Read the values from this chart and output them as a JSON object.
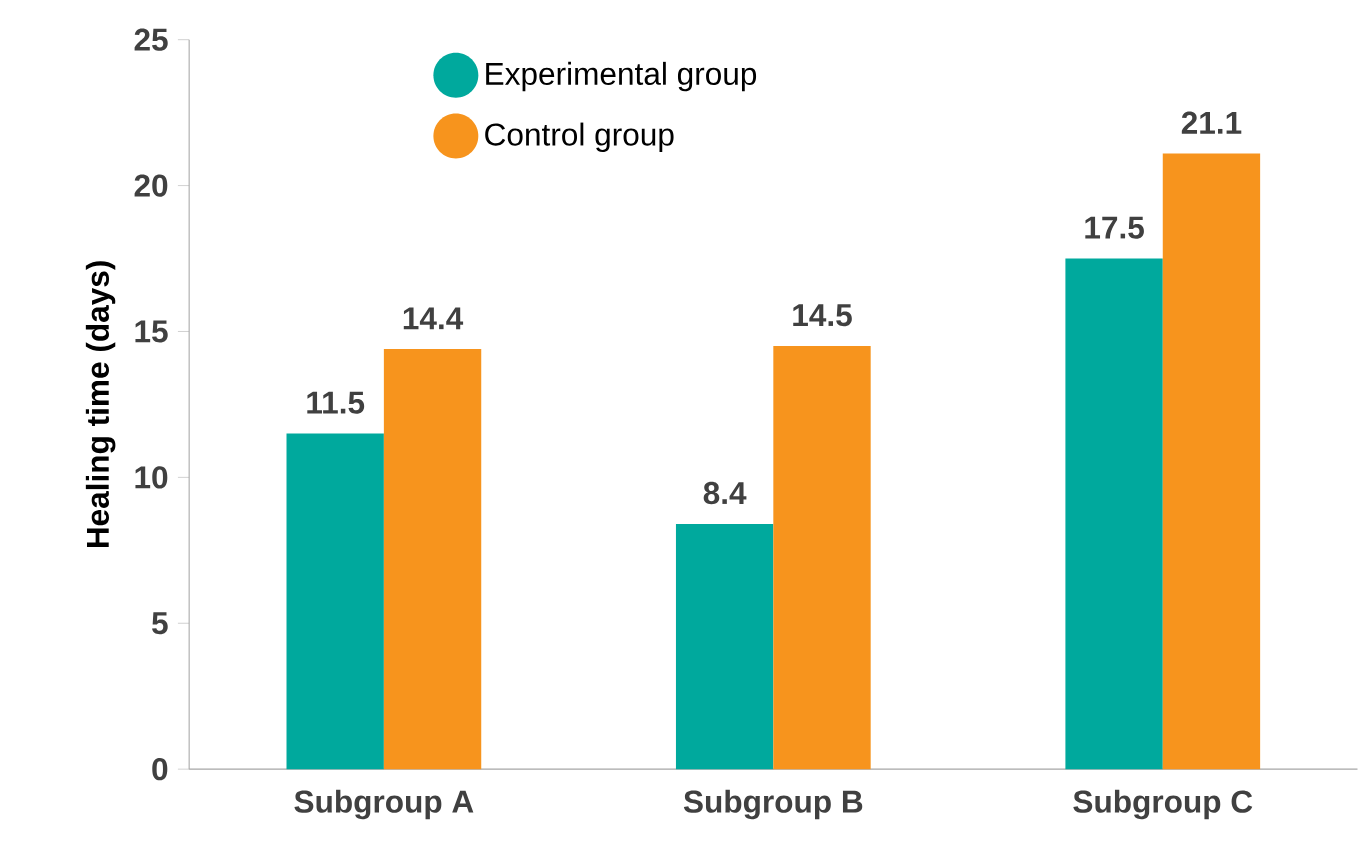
{
  "chart_data": {
    "type": "bar",
    "ylabel": "Healing time (days)",
    "categories": [
      "Subgroup A",
      "Subgroup B",
      "Subgroup C"
    ],
    "series": [
      {
        "name": "Experimental group",
        "color": "#00a99d",
        "values": [
          11.5,
          8.4,
          17.5
        ],
        "value_labels": [
          "11.5",
          "8.4",
          "17.5"
        ]
      },
      {
        "name": "Control group",
        "color": "#f7941d",
        "values": [
          14.4,
          14.5,
          21.1
        ],
        "value_labels": [
          "14.4",
          "14.5",
          "21.1"
        ]
      }
    ],
    "ylim": [
      0,
      25
    ],
    "yticks": [
      0,
      5,
      10,
      15,
      20,
      25
    ],
    "grid": false,
    "legend": "top"
  }
}
